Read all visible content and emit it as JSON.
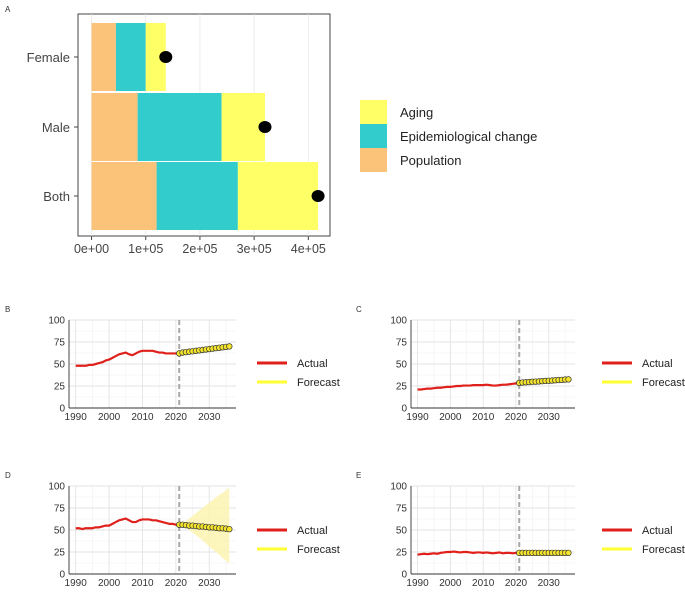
{
  "colors": {
    "population": "#FBC379",
    "epidemiological": "#33CCCC",
    "aging": "#FFFF66",
    "actual": "#E0201B",
    "forecast": "#FFFF33",
    "forecast_point_fill": "#F5E42C",
    "forecast_band": "#FBF3B0",
    "vline": "#A9A9A9"
  },
  "chart_data": [
    {
      "panel": "A",
      "type": "bar",
      "orientation": "horizontal",
      "stacked": true,
      "categories": [
        "Female",
        "Male",
        "Both"
      ],
      "series": [
        {
          "name": "Population",
          "values": [
            45000,
            85000,
            120000
          ]
        },
        {
          "name": "Epidemiological change",
          "values": [
            55000,
            155000,
            150000
          ]
        },
        {
          "name": "Aging",
          "values": [
            37000,
            80000,
            148000
          ]
        }
      ],
      "overall_points": [
        137000,
        320000,
        418000
      ],
      "xlim": [
        -25000,
        440000
      ],
      "x_ticks": [
        0,
        100000,
        200000,
        300000,
        400000
      ],
      "x_tick_labels": [
        "0e+00",
        "1e+05",
        "2e+05",
        "3e+05",
        "4e+05"
      ],
      "legend": [
        "Aging",
        "Epidemiological change",
        "Population"
      ],
      "legend_position": "right"
    },
    {
      "panel": "B",
      "type": "line",
      "x_ticks": [
        1990,
        2000,
        2010,
        2020,
        2030
      ],
      "y_ticks": [
        0,
        25,
        50,
        75,
        100
      ],
      "ylim": [
        0,
        100
      ],
      "vline": 2021,
      "actual": {
        "x": [
          1990,
          1991,
          1992,
          1993,
          1994,
          1995,
          1996,
          1997,
          1998,
          1999,
          2000,
          2001,
          2002,
          2003,
          2004,
          2005,
          2006,
          2007,
          2008,
          2009,
          2010,
          2011,
          2012,
          2013,
          2014,
          2015,
          2016,
          2017,
          2018,
          2019,
          2020,
          2021
        ],
        "y": [
          48,
          48,
          48,
          48,
          49,
          49,
          50,
          51,
          52,
          54,
          55,
          57,
          59,
          61,
          62,
          63,
          61,
          60,
          62,
          64,
          65,
          65,
          65,
          65,
          64,
          63,
          63,
          62,
          62,
          62,
          62,
          62
        ]
      },
      "forecast": {
        "x": [
          2021,
          2022,
          2023,
          2024,
          2025,
          2026,
          2027,
          2028,
          2029,
          2030,
          2031,
          2032,
          2033,
          2034,
          2035,
          2036
        ],
        "y": [
          62,
          63,
          63.5,
          64,
          64.5,
          65,
          65.5,
          66,
          66.5,
          67,
          67.5,
          68,
          68.5,
          69,
          69.5,
          70
        ]
      },
      "legend": [
        "Actual",
        "Forecast"
      ]
    },
    {
      "panel": "C",
      "type": "line",
      "x_ticks": [
        1990,
        2000,
        2010,
        2020,
        2030
      ],
      "y_ticks": [
        0,
        25,
        50,
        75,
        100
      ],
      "ylim": [
        0,
        100
      ],
      "vline": 2021,
      "actual": {
        "x": [
          1990,
          1991,
          1992,
          1993,
          1994,
          1995,
          1996,
          1997,
          1998,
          1999,
          2000,
          2001,
          2002,
          2003,
          2004,
          2005,
          2006,
          2007,
          2008,
          2009,
          2010,
          2011,
          2012,
          2013,
          2014,
          2015,
          2016,
          2017,
          2018,
          2019,
          2020,
          2021
        ],
        "y": [
          21,
          21,
          21.5,
          22,
          22,
          22.5,
          23,
          23,
          23.5,
          24,
          24,
          24.5,
          25,
          25,
          25.5,
          25.5,
          25.5,
          26,
          26,
          26,
          26,
          26.5,
          26,
          25.5,
          25.5,
          26,
          26.5,
          26.5,
          27,
          27.5,
          28,
          28.5
        ]
      },
      "forecast": {
        "x": [
          2021,
          2022,
          2023,
          2024,
          2025,
          2026,
          2027,
          2028,
          2029,
          2030,
          2031,
          2032,
          2033,
          2034,
          2035,
          2036
        ],
        "y": [
          28.5,
          29,
          29.2,
          29.5,
          29.8,
          30,
          30.2,
          30.5,
          30.8,
          31,
          31.2,
          31.5,
          31.8,
          32,
          32.3,
          32.5
        ]
      },
      "legend": [
        "Actual",
        "Forecast"
      ]
    },
    {
      "panel": "D",
      "type": "line",
      "x_ticks": [
        1990,
        2000,
        2010,
        2020,
        2030
      ],
      "y_ticks": [
        0,
        25,
        50,
        75,
        100
      ],
      "ylim": [
        0,
        100
      ],
      "vline": 2021,
      "actual": {
        "x": [
          1990,
          1991,
          1992,
          1993,
          1994,
          1995,
          1996,
          1997,
          1998,
          1999,
          2000,
          2001,
          2002,
          2003,
          2004,
          2005,
          2006,
          2007,
          2008,
          2009,
          2010,
          2011,
          2012,
          2013,
          2014,
          2015,
          2016,
          2017,
          2018,
          2019,
          2020,
          2021
        ],
        "y": [
          52,
          52,
          51,
          52,
          52,
          52,
          53,
          53,
          54,
          55,
          55,
          57,
          59,
          61,
          62,
          63,
          61,
          59,
          59,
          61,
          62,
          62,
          62,
          61,
          61,
          60,
          59,
          58,
          57,
          57,
          56,
          56
        ]
      },
      "forecast": {
        "x": [
          2021,
          2022,
          2023,
          2024,
          2025,
          2026,
          2027,
          2028,
          2029,
          2030,
          2031,
          2032,
          2033,
          2034,
          2035,
          2036
        ],
        "y": [
          56,
          56,
          55.5,
          55,
          55,
          54.5,
          54,
          54,
          53.5,
          53,
          53,
          52.5,
          52,
          52,
          51.5,
          51
        ],
        "lower": [
          56,
          54,
          52,
          50,
          47,
          44,
          41,
          38,
          35,
          31,
          28,
          25,
          22,
          18,
          15,
          12
        ],
        "upper": [
          56,
          58,
          60,
          63,
          66,
          69,
          72,
          75,
          78,
          81,
          84,
          87,
          90,
          92,
          95,
          98
        ]
      },
      "legend": [
        "Actual",
        "Forecast"
      ]
    },
    {
      "panel": "E",
      "type": "line",
      "x_ticks": [
        1990,
        2000,
        2010,
        2020,
        2030
      ],
      "y_ticks": [
        0,
        25,
        50,
        75,
        100
      ],
      "ylim": [
        0,
        100
      ],
      "vline": 2021,
      "actual": {
        "x": [
          1990,
          1991,
          1992,
          1993,
          1994,
          1995,
          1996,
          1997,
          1998,
          1999,
          2000,
          2001,
          2002,
          2003,
          2004,
          2005,
          2006,
          2007,
          2008,
          2009,
          2010,
          2011,
          2012,
          2013,
          2014,
          2015,
          2016,
          2017,
          2018,
          2019,
          2020,
          2021
        ],
        "y": [
          22,
          22.5,
          23,
          22.5,
          23,
          23.5,
          23,
          24,
          24.5,
          25,
          25,
          25.5,
          25,
          24.5,
          25,
          25,
          24.5,
          24,
          24.5,
          24.5,
          24,
          24.5,
          24,
          23.5,
          24,
          24.5,
          23.5,
          24,
          24,
          23.5,
          24,
          24
        ]
      },
      "forecast": {
        "x": [
          2021,
          2022,
          2023,
          2024,
          2025,
          2026,
          2027,
          2028,
          2029,
          2030,
          2031,
          2032,
          2033,
          2034,
          2035,
          2036
        ],
        "y": [
          24,
          24,
          24,
          24,
          24,
          24,
          24,
          24,
          24,
          24,
          24,
          24,
          24,
          24,
          24,
          24
        ]
      },
      "legend": [
        "Actual",
        "Forecast"
      ]
    }
  ]
}
